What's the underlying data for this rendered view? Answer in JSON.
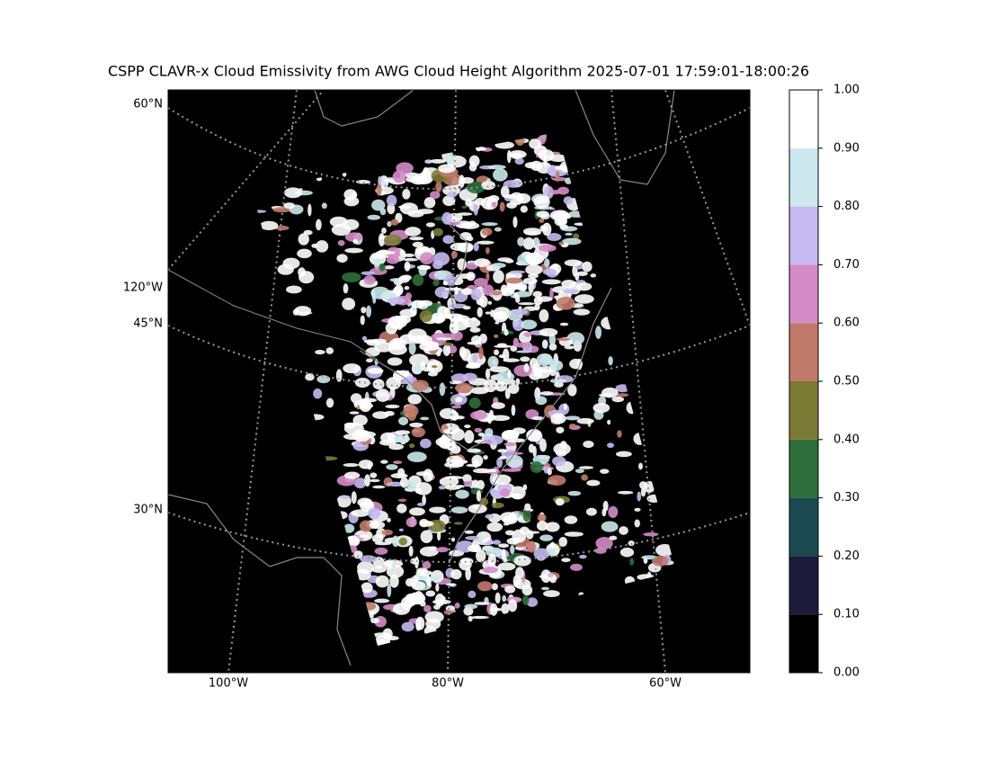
{
  "chart_data": {
    "type": "map",
    "title": "CSPP CLAVR-x Cloud Emissivity from AWG Cloud Height Algorithm 2025-07-01 17:59:01-18:00:26",
    "lat_labels": [
      "60°N",
      "45°N",
      "30°N"
    ],
    "lon_labels_left": [
      "120°W"
    ],
    "lon_labels": [
      "100°W",
      "80°W",
      "60°W"
    ],
    "colorbar": {
      "ticks": [
        {
          "value": 0,
          "label": "0.00"
        },
        {
          "value": 0.1,
          "label": "0.10"
        },
        {
          "value": 0.2,
          "label": "0.20"
        },
        {
          "value": 0.3,
          "label": "0.30"
        },
        {
          "value": 0.4,
          "label": "0.40"
        },
        {
          "value": 0.5,
          "label": "0.50"
        },
        {
          "value": 0.6,
          "label": "0.60"
        },
        {
          "value": 0.7,
          "label": "0.70"
        },
        {
          "value": 0.8,
          "label": "0.80"
        },
        {
          "value": 0.9,
          "label": "0.90"
        },
        {
          "value": 1,
          "label": "1.00"
        }
      ],
      "colors": [
        "#000000",
        "#1e1a3a",
        "#1a4a50",
        "#2e6e3c",
        "#7a7a34",
        "#c07a6a",
        "#d48cc6",
        "#c4baf0",
        "#cce8ec",
        "#ffffff"
      ]
    }
  }
}
